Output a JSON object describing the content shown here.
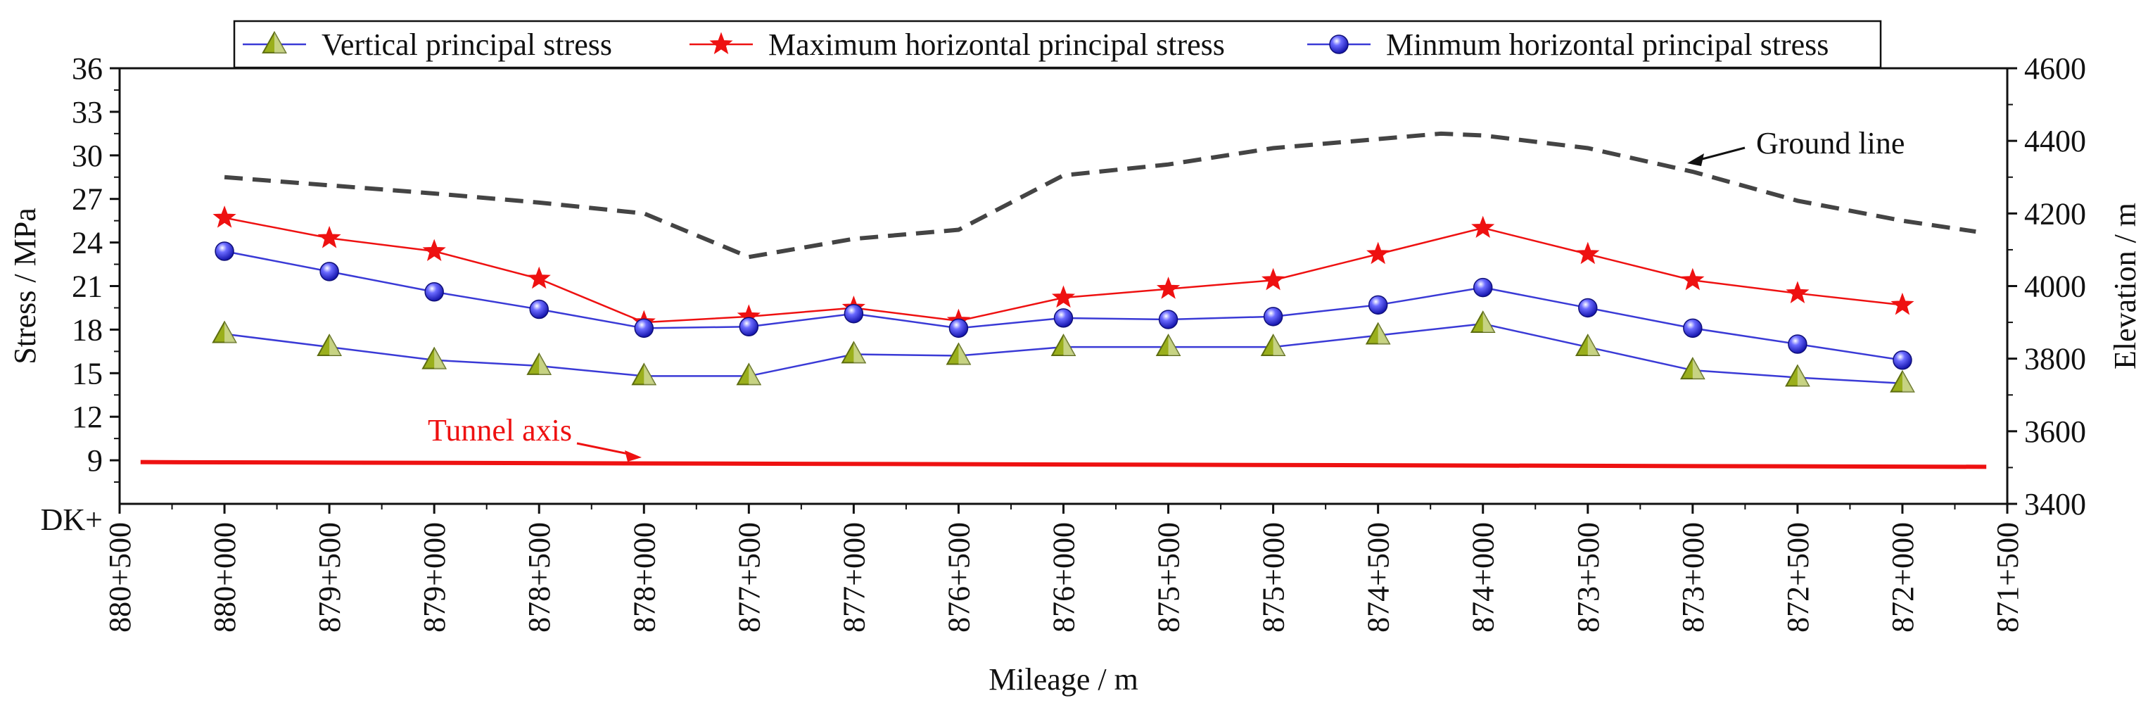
{
  "chart_data": {
    "type": "line",
    "x_label": "Mileage / m",
    "y_label_left": "Stress / MPa",
    "y_label_right": "Elevation / m",
    "x_prefix": "DK+",
    "x_ticks": [
      "880+500",
      "880+000",
      "879+500",
      "879+000",
      "878+500",
      "878+000",
      "877+500",
      "877+000",
      "876+500",
      "876+000",
      "875+500",
      "875+000",
      "874+500",
      "874+000",
      "873+500",
      "873+000",
      "872+500",
      "872+000",
      "871+500"
    ],
    "y_left_ticks": [
      9,
      12,
      15,
      18,
      21,
      24,
      27,
      30,
      33,
      36
    ],
    "y_left_range": [
      6,
      36
    ],
    "y_right_ticks": [
      3400,
      3600,
      3800,
      4000,
      4200,
      4400,
      4600
    ],
    "y_right_range": [
      3400,
      4600
    ],
    "station_km": [
      880.0,
      879.5,
      879.0,
      878.5,
      878.0,
      877.5,
      877.0,
      876.5,
      876.0,
      875.5,
      875.0,
      874.5,
      874.0,
      873.5,
      873.0,
      872.5,
      872.0
    ],
    "series": [
      {
        "name": "Vertical principal stress",
        "color": "#3a3ad6",
        "marker": "triangle",
        "marker_color": "#9aaf1c",
        "values": [
          17.7,
          16.8,
          15.9,
          15.5,
          14.8,
          14.8,
          16.3,
          16.2,
          16.8,
          16.8,
          16.8,
          17.6,
          18.4,
          16.8,
          15.2,
          14.7,
          14.3
        ]
      },
      {
        "name": "Maximum horizontal principal stress",
        "color": "#ee1111",
        "marker": "star",
        "marker_color": "#ee1111",
        "values": [
          25.7,
          24.3,
          23.4,
          21.5,
          18.5,
          18.9,
          19.5,
          18.6,
          20.2,
          20.8,
          21.4,
          23.2,
          25.0,
          23.2,
          21.4,
          20.5,
          19.7
        ]
      },
      {
        "name": "Minmum horizontal principal stress",
        "color": "#3a3ad6",
        "marker": "sphere",
        "marker_color": "#2222dd",
        "values": [
          23.4,
          22.0,
          20.6,
          19.4,
          18.1,
          18.2,
          19.1,
          18.1,
          18.8,
          18.7,
          18.9,
          19.7,
          20.9,
          19.5,
          18.1,
          17.0,
          15.9
        ]
      }
    ],
    "ground_line": {
      "name": "Ground line",
      "color": "#444444",
      "style": "dashed",
      "points": [
        {
          "km": 880.0,
          "elev": 4300
        },
        {
          "km": 879.0,
          "elev": 4255
        },
        {
          "km": 878.5,
          "elev": 4230
        },
        {
          "km": 878.0,
          "elev": 4200
        },
        {
          "km": 877.5,
          "elev": 4080
        },
        {
          "km": 877.0,
          "elev": 4130
        },
        {
          "km": 876.5,
          "elev": 4155
        },
        {
          "km": 876.0,
          "elev": 4305
        },
        {
          "km": 875.5,
          "elev": 4335
        },
        {
          "km": 875.0,
          "elev": 4380
        },
        {
          "km": 874.5,
          "elev": 4405
        },
        {
          "km": 874.2,
          "elev": 4420
        },
        {
          "km": 874.0,
          "elev": 4415
        },
        {
          "km": 873.5,
          "elev": 4380
        },
        {
          "km": 873.0,
          "elev": 4315
        },
        {
          "km": 872.5,
          "elev": 4235
        },
        {
          "km": 872.0,
          "elev": 4180
        },
        {
          "km": 871.65,
          "elev": 4150
        }
      ]
    },
    "tunnel_axis": {
      "name": "Tunnel axis",
      "color": "#ee1111",
      "start": {
        "km": 880.4,
        "elev": 3515
      },
      "end": {
        "km": 871.6,
        "elev": 3502
      }
    },
    "legend_position": "top-center"
  }
}
